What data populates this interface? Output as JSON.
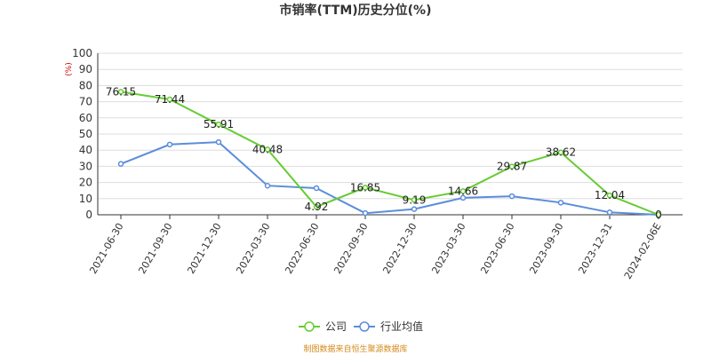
{
  "chart_data": {
    "type": "line",
    "title": "市销率(TTM)历史分位(%)",
    "unit": "(%)",
    "categories": [
      "2021-06-30",
      "2021-09-30",
      "2021-12-30",
      "2022-03-30",
      "2022-06-30",
      "2022-09-30",
      "2022-12-30",
      "2023-03-30",
      "2023-06-30",
      "2023-09-30",
      "2023-12-31",
      "2024-02-06E"
    ],
    "series": [
      {
        "name": "公司",
        "color": "#66cc33",
        "values": [
          76.15,
          71.44,
          55.91,
          40.48,
          4.92,
          16.85,
          9.19,
          14.66,
          29.87,
          38.62,
          12.04,
          0
        ],
        "labels": [
          "76.15",
          "71.44",
          "55.91",
          "40.48",
          "4.92",
          "16.85",
          "9.19",
          "14.66",
          "29.87",
          "38.62",
          "12.04",
          "0"
        ]
      },
      {
        "name": "行业均值",
        "color": "#5b8ddb",
        "values": [
          31.5,
          43.5,
          45.0,
          18.0,
          16.5,
          1.0,
          3.5,
          10.5,
          11.5,
          7.5,
          1.5,
          0
        ]
      }
    ],
    "ylim": [
      0,
      100
    ],
    "yticks": [
      "0",
      "10",
      "20",
      "30",
      "40",
      "50",
      "60",
      "70",
      "80",
      "90",
      "100"
    ],
    "grid": true,
    "legend_position": "bottom-center",
    "source": "制图数据来自恒生聚源数据库"
  }
}
